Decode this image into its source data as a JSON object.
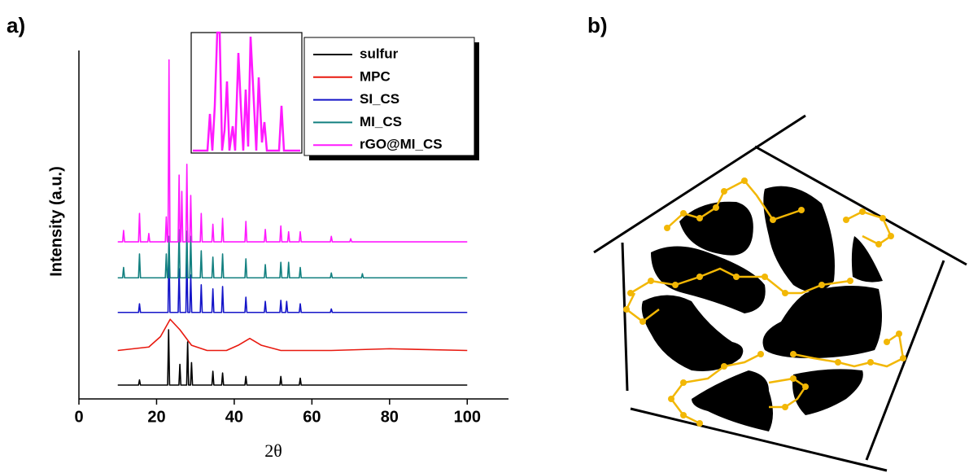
{
  "panels": {
    "a": "a)",
    "b": "b)"
  },
  "chart_data": {
    "type": "line",
    "x_label": "2θ",
    "y_label": "Intensity (a.u.)",
    "xlim": [
      0,
      110
    ],
    "xticks": [
      0,
      20,
      40,
      60,
      80,
      100
    ],
    "ylim": [
      0,
      100
    ],
    "legend": "upper right",
    "series": [
      {
        "name": "sulfur",
        "color": "#000000",
        "x": [
          10,
          15.35,
          15.6,
          15.85,
          22.85,
          23.1,
          23.35,
          25.75,
          26,
          26.25,
          27.75,
          28,
          28.25,
          28.75,
          29,
          29.25,
          34.25,
          34.5,
          34.75,
          36.75,
          37,
          37.25,
          42.75,
          43,
          43.25,
          51.75,
          52,
          52.25,
          56.75,
          57,
          57.25,
          100
        ],
        "values": [
          4,
          4,
          5.5,
          4,
          4,
          20,
          4,
          4,
          10,
          4,
          4,
          16.5,
          4,
          4,
          10.5,
          4,
          4,
          8,
          4,
          4,
          7.5,
          4,
          4,
          6.5,
          4,
          4,
          6.5,
          4,
          4,
          6,
          4,
          4
        ]
      },
      {
        "name": "MPC",
        "color": "#e8190f",
        "x": [
          10,
          18,
          21,
          23.5,
          26,
          29,
          33,
          38,
          41,
          44,
          47,
          52,
          65,
          80,
          100
        ],
        "values": [
          14,
          15,
          18,
          23,
          20,
          15.5,
          14,
          14,
          15.5,
          17.5,
          15.5,
          14,
          14,
          14.5,
          14
        ]
      },
      {
        "name": "SI_CS",
        "color": "#1414c8",
        "x": [
          10,
          15.35,
          15.6,
          15.85,
          22.95,
          23.2,
          23.45,
          25.55,
          25.8,
          26.05,
          27.55,
          27.8,
          28.05,
          28.55,
          28.8,
          29.05,
          31.25,
          31.5,
          31.75,
          34.25,
          34.5,
          34.75,
          36.75,
          37,
          37.25,
          42.75,
          43,
          43.25,
          47.75,
          48,
          48.25,
          51.75,
          52,
          52.25,
          53.25,
          53.5,
          53.75,
          56.75,
          57,
          57.25,
          64.75,
          65,
          65.25,
          100
        ],
        "values": [
          25,
          25,
          27.5,
          25,
          25,
          44.7,
          25,
          25,
          37.6,
          25,
          25,
          42,
          25,
          25,
          35.8,
          25,
          25,
          33,
          25,
          25,
          31.8,
          25,
          25,
          32.5,
          25,
          25,
          29.4,
          25,
          25,
          28.2,
          25,
          25,
          28.5,
          25,
          25,
          28.2,
          25,
          25,
          27.5,
          25,
          25,
          26,
          25,
          25
        ]
      },
      {
        "name": "MI_CS",
        "color": "#138080",
        "x": [
          10,
          11.25,
          11.5,
          11.75,
          15.35,
          15.6,
          15.85,
          22.25,
          22.5,
          22.75,
          22.95,
          23.2,
          23.45,
          25.55,
          25.8,
          26.05,
          27.55,
          27.8,
          28.05,
          28.55,
          28.8,
          29.05,
          31.25,
          31.5,
          31.75,
          34.25,
          34.5,
          34.75,
          36.75,
          37,
          37.25,
          42.75,
          43,
          43.25,
          47.75,
          48,
          48.25,
          51.75,
          52,
          52.25,
          53.75,
          54,
          54.25,
          56.75,
          57,
          57.25,
          64.75,
          65,
          65.25,
          72.75,
          73,
          73.25,
          100
        ],
        "values": [
          35,
          35,
          38,
          35,
          35,
          41.9,
          35,
          35,
          41.9,
          35,
          35,
          47,
          35,
          35,
          48.9,
          35,
          35,
          48.5,
          35,
          35,
          47,
          35,
          35,
          42.8,
          35,
          35,
          41,
          35,
          35,
          41.9,
          35,
          35,
          40.5,
          35,
          35,
          38.8,
          35,
          35,
          39.5,
          35,
          35,
          39.5,
          35,
          35,
          38,
          35,
          35,
          36.4,
          35,
          35,
          36.2,
          35,
          35
        ]
      },
      {
        "name": "rGO@MI_CS",
        "color": "#ff1aff",
        "x": [
          10,
          11.25,
          11.5,
          11.75,
          15.35,
          15.6,
          15.85,
          17.75,
          18,
          18.25,
          22.25,
          22.5,
          22.75,
          22.95,
          23.2,
          23.45,
          25.55,
          25.8,
          26.05,
          26.25,
          26.5,
          26.75,
          27.55,
          27.8,
          28.05,
          28.55,
          28.8,
          29.05,
          31.25,
          31.5,
          31.75,
          34.25,
          34.5,
          34.75,
          36.75,
          37,
          37.25,
          42.75,
          43,
          43.25,
          47.75,
          48,
          48.25,
          51.75,
          52,
          52.25,
          53.75,
          54,
          54.25,
          56.75,
          57,
          57.25,
          64.75,
          65,
          65.25,
          69.75,
          70,
          70.25,
          100
        ],
        "values": [
          45.4,
          45.4,
          48.7,
          45.4,
          45.4,
          53.6,
          45.4,
          45.4,
          47.8,
          45.4,
          45.4,
          52.6,
          45.4,
          45.4,
          98,
          45.4,
          45.4,
          64.7,
          45.4,
          45.4,
          60,
          45.4,
          45.4,
          67.8,
          45.4,
          45.4,
          58.8,
          45.4,
          45.4,
          53.6,
          45.4,
          45.4,
          50.5,
          45.4,
          45.4,
          52.2,
          45.4,
          45.4,
          51.3,
          45.4,
          45.4,
          49,
          45.4,
          45.4,
          50,
          45.4,
          45.4,
          48.3,
          45.4,
          45.4,
          48.3,
          45.4,
          45.4,
          47,
          45.4,
          45.4,
          46.3,
          45.4,
          45.4
        ]
      }
    ]
  }
}
